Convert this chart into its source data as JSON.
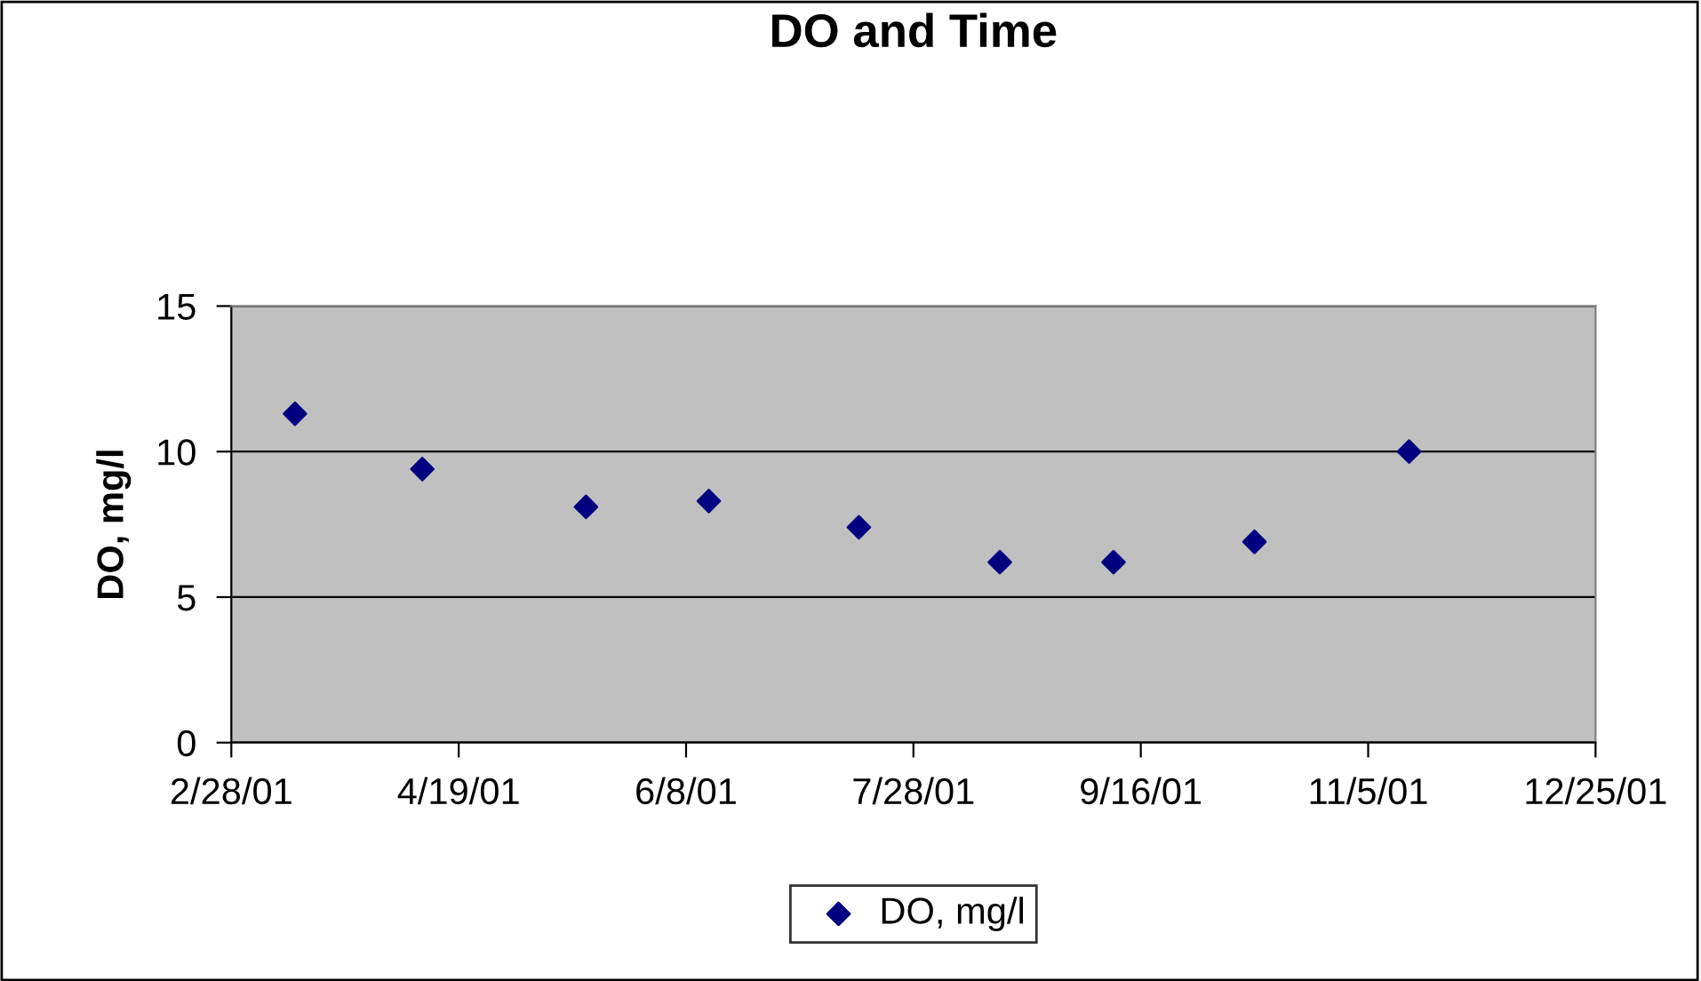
{
  "chart_data": {
    "type": "scatter",
    "title": "DO and Time",
    "ylabel": "DO, mg/l",
    "x": [
      "2001-03-14",
      "2001-04-11",
      "2001-05-17",
      "2001-06-13",
      "2001-07-16",
      "2001-08-16",
      "2001-09-10",
      "2001-10-11",
      "2001-11-14"
    ],
    "series": [
      {
        "name": "DO, mg/l",
        "color": "#000080",
        "values": [
          11.3,
          9.4,
          8.1,
          8.3,
          7.4,
          6.2,
          6.2,
          6.9,
          10.0
        ]
      }
    ],
    "xlim": [
      "2001-02-28",
      "2001-12-25"
    ],
    "xticks": [
      {
        "value": "2001-02-28",
        "label": "2/28/01"
      },
      {
        "value": "2001-04-19",
        "label": "4/19/01"
      },
      {
        "value": "2001-06-08",
        "label": "6/8/01"
      },
      {
        "value": "2001-07-28",
        "label": "7/28/01"
      },
      {
        "value": "2001-09-16",
        "label": "9/16/01"
      },
      {
        "value": "2001-11-05",
        "label": "11/5/01"
      },
      {
        "value": "2001-12-25",
        "label": "12/25/01"
      }
    ],
    "ylim": [
      0,
      15
    ],
    "yticks": [
      0,
      5,
      10,
      15
    ],
    "grid": "y",
    "legend": "bottom",
    "marker": "diamond"
  }
}
